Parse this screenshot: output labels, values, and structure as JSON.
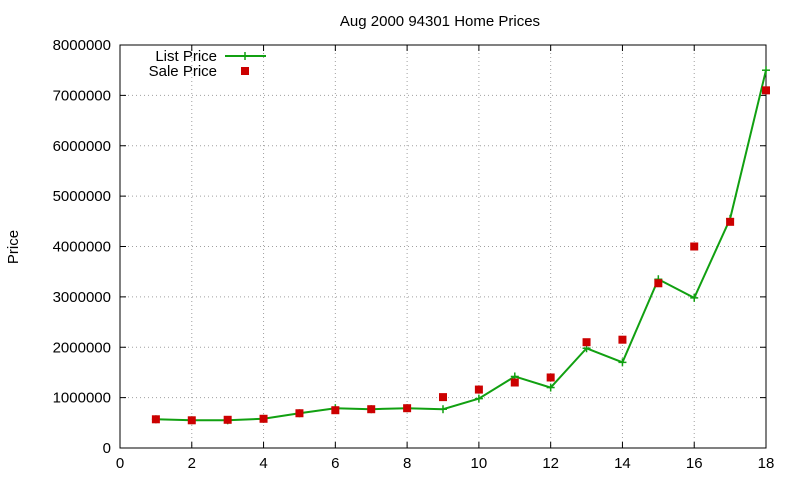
{
  "chart_data": {
    "type": "line",
    "title": "Aug 2000 94301 Home Prices",
    "xlabel": "",
    "ylabel": "Price",
    "xlim": [
      0,
      18
    ],
    "ylim": [
      0,
      8000000
    ],
    "x_ticks": [
      0,
      2,
      4,
      6,
      8,
      10,
      12,
      14,
      16,
      18
    ],
    "y_ticks": [
      0,
      1000000,
      2000000,
      3000000,
      4000000,
      5000000,
      6000000,
      7000000,
      8000000
    ],
    "grid": true,
    "legend_position": "top-left",
    "series": [
      {
        "name": "List Price",
        "style": "line-with-plus-markers",
        "color": "#11a011",
        "x": [
          1,
          2,
          3,
          4,
          5,
          6,
          7,
          8,
          9,
          10,
          11,
          12,
          13,
          14,
          15,
          16,
          17,
          18
        ],
        "values": [
          570000,
          550000,
          550000,
          580000,
          690000,
          790000,
          770000,
          790000,
          770000,
          980000,
          1420000,
          1200000,
          1980000,
          1700000,
          3350000,
          2980000,
          4550000,
          7500000
        ]
      },
      {
        "name": "Sale Price",
        "style": "square-markers",
        "color": "#cc0000",
        "x": [
          1,
          2,
          3,
          4,
          5,
          6,
          7,
          8,
          9,
          10,
          11,
          12,
          13,
          14,
          15,
          16,
          17,
          18
        ],
        "values": [
          570000,
          550000,
          560000,
          580000,
          690000,
          750000,
          770000,
          790000,
          1010000,
          1160000,
          1300000,
          1400000,
          2100000,
          2150000,
          3270000,
          4000000,
          4490000,
          7100000
        ]
      }
    ]
  }
}
